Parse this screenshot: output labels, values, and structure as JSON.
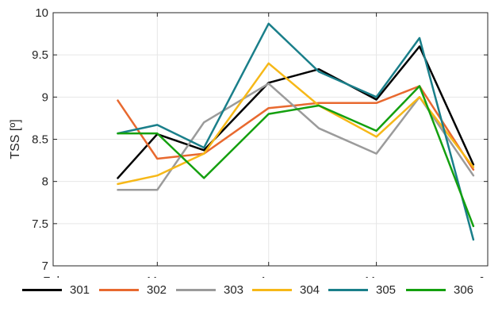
{
  "chart_data": {
    "type": "line",
    "ylabel": "TSS [º]",
    "ylim": [
      7,
      10
    ],
    "yticks": [
      7,
      7.5,
      8,
      8.5,
      9,
      9.5,
      10
    ],
    "ytick_labels": [
      "7",
      "7.5",
      "8",
      "8.5",
      "9",
      "9.5",
      "10"
    ],
    "xlim": [
      "2024-02-01",
      "2024-06-01"
    ],
    "xticks": [
      "2024-02-01",
      "2024-03-01",
      "2024-04-01",
      "2024-05-01",
      "2024-06-01"
    ],
    "xtick_labels": [
      "Feb",
      "Mar",
      "Apr",
      "May",
      "Jun"
    ],
    "x": [
      "2024-02-19",
      "2024-03-01",
      "2024-03-14",
      "2024-04-01",
      "2024-04-15",
      "2024-05-01",
      "2024-05-13",
      "2024-05-28"
    ],
    "grid": true,
    "legend_position": "bottom",
    "series": [
      {
        "name": "301",
        "color": "#000000",
        "values": [
          8.04,
          8.56,
          8.37,
          9.17,
          9.33,
          8.97,
          9.6,
          8.2
        ]
      },
      {
        "name": "302",
        "color": "#e8692f",
        "values": [
          8.96,
          8.27,
          8.33,
          8.87,
          8.93,
          8.93,
          9.13,
          8.14
        ]
      },
      {
        "name": "303",
        "color": "#9b9b9b",
        "values": [
          7.9,
          7.9,
          8.7,
          9.16,
          8.63,
          8.33,
          9.0,
          8.07
        ]
      },
      {
        "name": "304",
        "color": "#f6b818",
        "values": [
          7.97,
          8.07,
          8.33,
          9.4,
          8.9,
          8.53,
          9.0,
          8.17
        ]
      },
      {
        "name": "305",
        "color": "#1a7f8a",
        "values": [
          8.57,
          8.67,
          8.4,
          9.87,
          9.3,
          9.0,
          9.7,
          7.31
        ]
      },
      {
        "name": "306",
        "color": "#14a00f",
        "values": [
          8.57,
          8.57,
          8.04,
          8.8,
          8.9,
          8.6,
          9.13,
          7.47
        ]
      }
    ]
  }
}
